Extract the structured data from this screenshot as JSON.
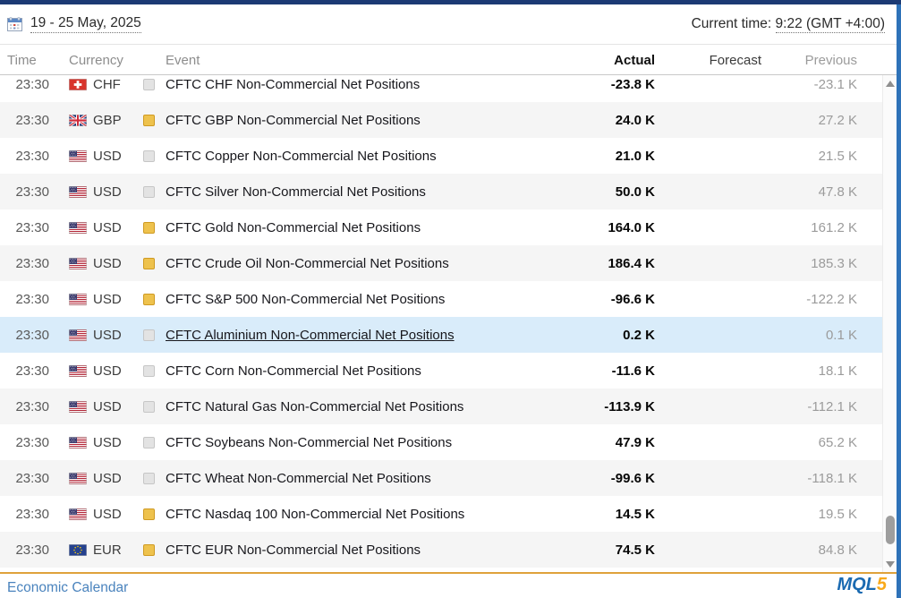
{
  "toolbar": {
    "date_range": "19 - 25 May, 2025",
    "current_time_label": "Current time:",
    "current_time_value": "9:22 (GMT +4:00)"
  },
  "columns": {
    "time": "Time",
    "currency": "Currency",
    "event": "Event",
    "actual": "Actual",
    "forecast": "Forecast",
    "previous": "Previous"
  },
  "rows": [
    {
      "time": "23:30",
      "currency": "CHF",
      "flag": "chf",
      "importance": "low",
      "event": "CFTC CHF Non-Commercial Net Positions",
      "actual": "-23.8 K",
      "forecast": "",
      "previous": "-23.1 K",
      "highlighted": false
    },
    {
      "time": "23:30",
      "currency": "GBP",
      "flag": "gbp",
      "importance": "high",
      "event": "CFTC GBP Non-Commercial Net Positions",
      "actual": "24.0 K",
      "forecast": "",
      "previous": "27.2 K",
      "highlighted": false
    },
    {
      "time": "23:30",
      "currency": "USD",
      "flag": "usd",
      "importance": "low",
      "event": "CFTC Copper Non-Commercial Net Positions",
      "actual": "21.0 K",
      "forecast": "",
      "previous": "21.5 K",
      "highlighted": false
    },
    {
      "time": "23:30",
      "currency": "USD",
      "flag": "usd",
      "importance": "low",
      "event": "CFTC Silver Non-Commercial Net Positions",
      "actual": "50.0 K",
      "forecast": "",
      "previous": "47.8 K",
      "highlighted": false
    },
    {
      "time": "23:30",
      "currency": "USD",
      "flag": "usd",
      "importance": "high",
      "event": "CFTC Gold Non-Commercial Net Positions",
      "actual": "164.0 K",
      "forecast": "",
      "previous": "161.2 K",
      "highlighted": false
    },
    {
      "time": "23:30",
      "currency": "USD",
      "flag": "usd",
      "importance": "high",
      "event": "CFTC Crude Oil Non-Commercial Net Positions",
      "actual": "186.4 K",
      "forecast": "",
      "previous": "185.3 K",
      "highlighted": false
    },
    {
      "time": "23:30",
      "currency": "USD",
      "flag": "usd",
      "importance": "high",
      "event": "CFTC S&P 500 Non-Commercial Net Positions",
      "actual": "-96.6 K",
      "forecast": "",
      "previous": "-122.2 K",
      "highlighted": false
    },
    {
      "time": "23:30",
      "currency": "USD",
      "flag": "usd",
      "importance": "low",
      "event": "CFTC Aluminium Non-Commercial Net Positions",
      "actual": "0.2 K",
      "forecast": "",
      "previous": "0.1 K",
      "highlighted": true
    },
    {
      "time": "23:30",
      "currency": "USD",
      "flag": "usd",
      "importance": "low",
      "event": "CFTC Corn Non-Commercial Net Positions",
      "actual": "-11.6 K",
      "forecast": "",
      "previous": "18.1 K",
      "highlighted": false
    },
    {
      "time": "23:30",
      "currency": "USD",
      "flag": "usd",
      "importance": "low",
      "event": "CFTC Natural Gas Non-Commercial Net Positions",
      "actual": "-113.9 K",
      "forecast": "",
      "previous": "-112.1 K",
      "highlighted": false
    },
    {
      "time": "23:30",
      "currency": "USD",
      "flag": "usd",
      "importance": "low",
      "event": "CFTC Soybeans Non-Commercial Net Positions",
      "actual": "47.9 K",
      "forecast": "",
      "previous": "65.2 K",
      "highlighted": false
    },
    {
      "time": "23:30",
      "currency": "USD",
      "flag": "usd",
      "importance": "low",
      "event": "CFTC Wheat Non-Commercial Net Positions",
      "actual": "-99.6 K",
      "forecast": "",
      "previous": "-118.1 K",
      "highlighted": false
    },
    {
      "time": "23:30",
      "currency": "USD",
      "flag": "usd",
      "importance": "high",
      "event": "CFTC Nasdaq 100 Non-Commercial Net Positions",
      "actual": "14.5 K",
      "forecast": "",
      "previous": "19.5 K",
      "highlighted": false
    },
    {
      "time": "23:30",
      "currency": "EUR",
      "flag": "eur",
      "importance": "high",
      "event": "CFTC EUR Non-Commercial Net Positions",
      "actual": "74.5 K",
      "forecast": "",
      "previous": "84.8 K",
      "highlighted": false
    }
  ],
  "footer": {
    "link": "Economic Calendar",
    "logo_mql": "MQL",
    "logo_five": "5"
  },
  "colors": {
    "accent_yellow": "#dfa23b",
    "importance_high": "#eec24d",
    "importance_low": "#e3e3e3",
    "row_alt": "#f5f5f5",
    "row_highlight": "#d9ecfa",
    "link_blue": "#4a83bd",
    "logo_blue": "#1a6ab1",
    "logo_orange": "#f9a919",
    "window_top": "#1c3a74",
    "window_edge": "#2e72b8"
  }
}
